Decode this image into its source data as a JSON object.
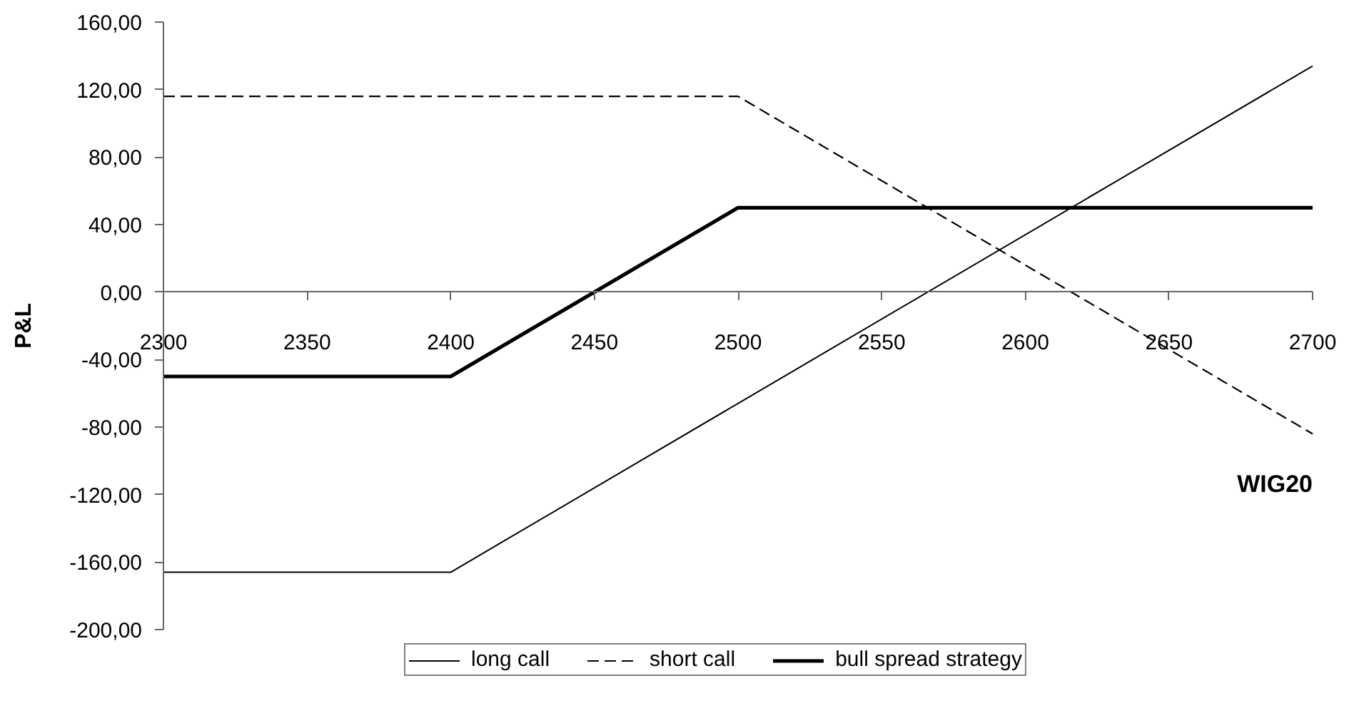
{
  "chart_data": {
    "type": "line",
    "xlabel": "WIG20",
    "ylabel": "P&L",
    "x": [
      2300,
      2400,
      2500,
      2700
    ],
    "series": [
      {
        "name": "long call",
        "color": "#000000",
        "line_style": "solid",
        "values": [
          -166,
          -166,
          -66,
          134
        ]
      },
      {
        "name": "short call",
        "color": "#000000",
        "line_style": "dashed",
        "values": [
          116,
          116,
          116,
          -84
        ]
      },
      {
        "name": "bull spread strategy",
        "color": "#000000",
        "line_style": "solid",
        "values": [
          -50,
          -50,
          50,
          50
        ]
      }
    ],
    "xlim": [
      2300,
      2700
    ],
    "xticks": [
      2300,
      2350,
      2400,
      2450,
      2500,
      2550,
      2600,
      2650,
      2700
    ],
    "ylim": [
      -200,
      160
    ],
    "yticks": [
      {
        "value": -200,
        "label": "-200,00"
      },
      {
        "value": -160,
        "label": "-160,00"
      },
      {
        "value": -120,
        "label": "-120,00"
      },
      {
        "value": -80,
        "label": "-80,00"
      },
      {
        "value": -40,
        "label": "-40,00"
      },
      {
        "value": 0,
        "label": "0,00"
      },
      {
        "value": 40,
        "label": "40,00"
      },
      {
        "value": 80,
        "label": "80,00"
      },
      {
        "value": 120,
        "label": "120,00"
      },
      {
        "value": 160,
        "label": "160,00"
      }
    ],
    "grid": false,
    "legend": "bottom"
  }
}
